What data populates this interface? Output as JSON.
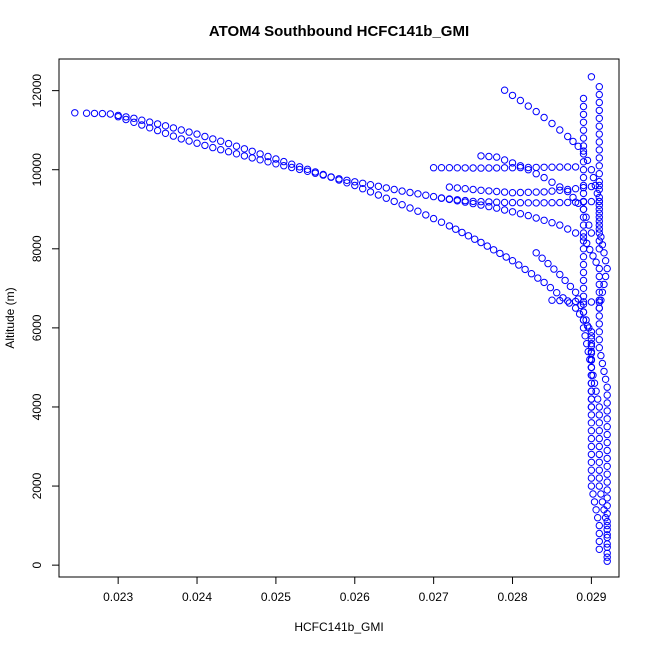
{
  "chart_data": {
    "type": "scatter",
    "title": "ATOM4 Southbound HCFC141b_GMI",
    "xlabel": "HCFC141b_GMI",
    "ylabel": "Altitude (m)",
    "xlim": [
      0.02225,
      0.02935
    ],
    "ylim": [
      -300,
      12800
    ],
    "x_ticks": [
      0.023,
      0.024,
      0.025,
      0.026,
      0.027,
      0.028,
      0.029
    ],
    "x_tick_labels": [
      "0.023",
      "0.024",
      "0.025",
      "0.026",
      "0.027",
      "0.028",
      "0.029"
    ],
    "y_ticks": [
      0,
      2000,
      4000,
      6000,
      8000,
      10000,
      12000
    ],
    "y_tick_labels": [
      "0",
      "2000",
      "4000",
      "6000",
      "8000",
      "10000",
      "12000"
    ],
    "marker": "open-circle",
    "color": "#0000ff",
    "grid": false,
    "legend": "none",
    "series": [
      {
        "points": [
          [
            0.02245,
            11440
          ],
          [
            0.0226,
            11430
          ],
          [
            0.0228,
            11420
          ],
          [
            0.0229,
            11410
          ],
          [
            0.0232,
            11300
          ],
          [
            0.0236,
            11110
          ],
          [
            0.024,
            10900
          ],
          [
            0.0244,
            10660
          ],
          [
            0.0248,
            10400
          ],
          [
            0.0252,
            10140
          ],
          [
            0.0256,
            9880
          ],
          [
            0.026,
            9600
          ],
          [
            0.0264,
            9280
          ],
          [
            0.0268,
            8950
          ],
          [
            0.0272,
            8580
          ],
          [
            0.0276,
            8160
          ],
          [
            0.028,
            7700
          ],
          [
            0.0284,
            7150
          ],
          [
            0.0288,
            6500
          ],
          [
            0.029,
            5900
          ],
          [
            0.029,
            5000
          ],
          [
            0.0291,
            4000
          ],
          [
            0.0291,
            3000
          ],
          [
            0.0291,
            2000
          ],
          [
            0.0292,
            1000
          ],
          [
            0.0292,
            300
          ],
          [
            0.0292,
            100
          ]
        ]
      },
      {
        "points": [
          [
            0.023,
            11340
          ],
          [
            0.0234,
            11060
          ],
          [
            0.0238,
            10780
          ],
          [
            0.0242,
            10560
          ],
          [
            0.0246,
            10350
          ],
          [
            0.025,
            10150
          ],
          [
            0.0254,
            9960
          ],
          [
            0.0258,
            9770
          ],
          [
            0.0262,
            9620
          ],
          [
            0.0266,
            9460
          ],
          [
            0.027,
            9320
          ],
          [
            0.0274,
            9180
          ],
          [
            0.0278,
            9030
          ],
          [
            0.0282,
            8840
          ],
          [
            0.0286,
            8600
          ],
          [
            0.0289,
            8300
          ],
          [
            0.0291,
            7500
          ],
          [
            0.0291,
            6500
          ]
        ]
      },
      {
        "points": [
          [
            0.0279,
            12010
          ],
          [
            0.0281,
            11750
          ],
          [
            0.0283,
            11470
          ],
          [
            0.0285,
            11170
          ],
          [
            0.0287,
            10840
          ],
          [
            0.0289,
            10470
          ],
          [
            0.029,
            10000
          ],
          [
            0.0291,
            9200
          ],
          [
            0.0291,
            8000
          ]
        ]
      },
      {
        "points": [
          [
            0.027,
            10050
          ],
          [
            0.0272,
            10050
          ],
          [
            0.0276,
            10040
          ],
          [
            0.028,
            10050
          ],
          [
            0.0284,
            10060
          ],
          [
            0.0288,
            10070
          ]
        ]
      },
      {
        "points": [
          [
            0.0276,
            10350
          ],
          [
            0.0278,
            10320
          ],
          [
            0.0281,
            10100
          ],
          [
            0.0284,
            9800
          ],
          [
            0.0287,
            9450
          ],
          [
            0.0289,
            9000
          ],
          [
            0.029,
            8400
          ]
        ]
      },
      {
        "points": [
          [
            0.0272,
            9560
          ],
          [
            0.0276,
            9480
          ],
          [
            0.028,
            9420
          ],
          [
            0.0284,
            9440
          ],
          [
            0.0288,
            9520
          ],
          [
            0.0291,
            9600
          ]
        ]
      },
      {
        "points": [
          [
            0.0271,
            9280
          ],
          [
            0.0275,
            9200
          ],
          [
            0.0279,
            9170
          ],
          [
            0.0283,
            9160
          ],
          [
            0.0287,
            9170
          ],
          [
            0.0291,
            9200
          ]
        ]
      },
      {
        "points": [
          [
            0.029,
            12350
          ],
          [
            0.0291,
            12100
          ],
          [
            0.0291,
            11500
          ],
          [
            0.0291,
            10500
          ],
          [
            0.0291,
            9500
          ],
          [
            0.0291,
            8500
          ],
          [
            0.0292,
            7500
          ],
          [
            0.0291,
            6500
          ],
          [
            0.0291,
            5500
          ],
          [
            0.0292,
            4500
          ],
          [
            0.0292,
            3500
          ],
          [
            0.0292,
            2500
          ],
          [
            0.0292,
            1500
          ],
          [
            0.0292,
            700
          ],
          [
            0.0292,
            200
          ]
        ]
      },
      {
        "points": [
          [
            0.0289,
            11800
          ],
          [
            0.0289,
            11000
          ],
          [
            0.0289,
            10000
          ],
          [
            0.0289,
            9000
          ],
          [
            0.0289,
            8000
          ],
          [
            0.0289,
            7000
          ],
          [
            0.0289,
            6000
          ],
          [
            0.029,
            5000
          ],
          [
            0.029,
            4000
          ],
          [
            0.029,
            3000
          ],
          [
            0.029,
            2000
          ],
          [
            0.0291,
            1000
          ],
          [
            0.0291,
            400
          ]
        ]
      },
      {
        "points": [
          [
            0.0285,
            6700
          ],
          [
            0.0287,
            6680
          ],
          [
            0.0289,
            6660
          ],
          [
            0.0291,
            6650
          ]
        ]
      },
      {
        "points": [
          [
            0.0283,
            7900
          ],
          [
            0.0286,
            7350
          ],
          [
            0.0288,
            6900
          ],
          [
            0.0289,
            6400
          ],
          [
            0.029,
            5800
          ],
          [
            0.029,
            5200
          ],
          [
            0.029,
            4600
          ],
          [
            0.029,
            4000
          ]
        ]
      }
    ]
  }
}
